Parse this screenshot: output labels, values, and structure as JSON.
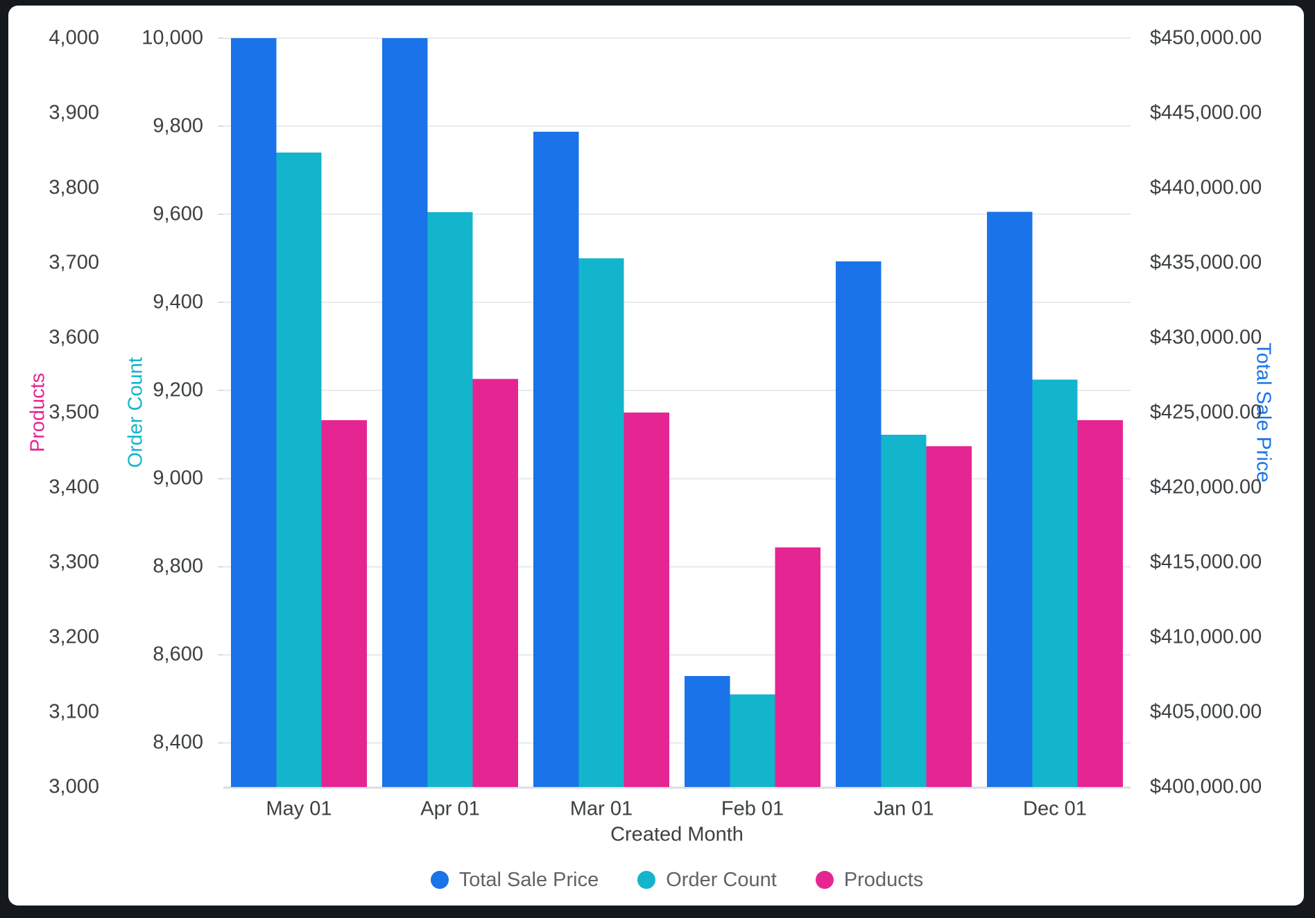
{
  "frame": {
    "outer_background": "#15181d",
    "card_background": "#ffffff"
  },
  "chart_data": {
    "type": "bar",
    "title": "",
    "xlabel": "Created Month",
    "categories": [
      "May 01",
      "Apr 01",
      "Mar 01",
      "Feb 01",
      "Jan 01",
      "Dec 01"
    ],
    "series": [
      {
        "name": "Total Sale Price",
        "axis": "sale",
        "color": "#1a73e8",
        "values": [
          450000,
          450000,
          443750,
          407400,
          435100,
          438400
        ]
      },
      {
        "name": "Order Count",
        "axis": "orders",
        "color": "#12b5cb",
        "values": [
          9740,
          9605,
          9500,
          8510,
          9100,
          9225
        ]
      },
      {
        "name": "Products",
        "axis": "products",
        "color": "#e52592",
        "values": [
          3490,
          3545,
          3500,
          3320,
          3455,
          3490
        ]
      }
    ],
    "axes": {
      "products": {
        "title": "Products",
        "color": "#e52592",
        "side": "far-left",
        "min": 3000,
        "max": 4000,
        "tick_values": [
          3000,
          3100,
          3200,
          3300,
          3400,
          3500,
          3600,
          3700,
          3800,
          3900,
          4000
        ],
        "tick_labels": [
          "3,000",
          "3,100",
          "3,200",
          "3,300",
          "3,400",
          "3,500",
          "3,600",
          "3,700",
          "3,800",
          "3,900",
          "4,000"
        ]
      },
      "orders": {
        "title": "Order Count",
        "color": "#12b5cb",
        "side": "left",
        "min": 8300,
        "max": 10000,
        "tick_values": [
          8400,
          8600,
          8800,
          9000,
          9200,
          9400,
          9600,
          9800,
          10000
        ],
        "tick_labels": [
          "8,400",
          "8,600",
          "8,800",
          "9,000",
          "9,200",
          "9,400",
          "9,600",
          "9,800",
          "10,000"
        ]
      },
      "sale": {
        "title": "Total Sale Price",
        "color": "#1a73e8",
        "side": "right",
        "min": 400000,
        "max": 450000,
        "tick_values": [
          400000,
          405000,
          410000,
          415000,
          420000,
          425000,
          430000,
          435000,
          440000,
          445000,
          450000
        ],
        "tick_labels": [
          "$400,000.00",
          "$405,000.00",
          "$410,000.00",
          "$415,000.00",
          "$420,000.00",
          "$425,000.00",
          "$430,000.00",
          "$435,000.00",
          "$440,000.00",
          "$445,000.00",
          "$450,000.00"
        ]
      }
    },
    "legend": {
      "position": "bottom-center",
      "items": [
        {
          "label": "Total Sale Price",
          "color": "#1a73e8"
        },
        {
          "label": "Order Count",
          "color": "#12b5cb"
        },
        {
          "label": "Products",
          "color": "#e52592"
        }
      ]
    },
    "grid": {
      "visible": true,
      "aligned_to": "orders",
      "line_color": "#e8eaed",
      "baseline_color": "#dadce0"
    }
  }
}
